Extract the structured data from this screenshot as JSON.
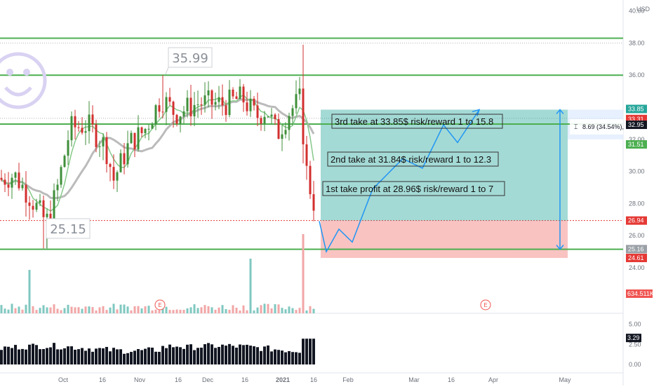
{
  "header": {
    "currency": "USD"
  },
  "chart_data": {
    "type": "candlestick",
    "currency": "USD",
    "price_axis": {
      "min": 22,
      "max": 40,
      "ticks": [
        24,
        26,
        28,
        30,
        32,
        34,
        36,
        38,
        40
      ],
      "tick_labels": [
        "24.00",
        "26.00",
        "28.00",
        "30.00",
        "32.00",
        "",
        "36.00",
        "38.00",
        "40.00"
      ]
    },
    "time_axis": {
      "labels": [
        "Oct",
        "16",
        "Nov",
        "16",
        "Dec",
        "16",
        "2021",
        "16",
        "Feb",
        "Mar",
        "16",
        "Apr",
        "May"
      ],
      "bold": [
        "2021"
      ]
    },
    "horizontal_levels": [
      38.3,
      36.0,
      32.95,
      25.15
    ],
    "price_tags": [
      {
        "value": 33.85,
        "label": "33.85",
        "color": "#26a69a"
      },
      {
        "value": 33.31,
        "label": "33.31",
        "color": "#e53935"
      },
      {
        "value": 32.95,
        "label": "32.95",
        "color": "#131722"
      },
      {
        "value": 31.51,
        "label": "31.51",
        "color": "#4caf50"
      },
      {
        "value": 26.94,
        "label": "26.94",
        "color": "#e53935"
      },
      {
        "value": 25.16,
        "label": "25.16",
        "color": "#9aa0a6"
      },
      {
        "value": 24.61,
        "label": "24.61",
        "color": "#e53935"
      }
    ],
    "callouts": [
      {
        "label": "35.99",
        "value": 35.99
      },
      {
        "label": "25.15",
        "value": 25.15
      }
    ],
    "position": {
      "entry": 26.94,
      "target": 33.85,
      "stop": 24.61
    },
    "measure": {
      "label": "8.69 (34.54%), 86"
    },
    "projection_path": [
      26.9,
      25.0,
      26.4,
      25.6,
      28.9,
      30.8,
      30.2,
      32.9,
      31.8,
      33.85
    ],
    "annotations": [
      {
        "text": "3rd take at 33.85$ risk/reward 1 to 15.8"
      },
      {
        "text": "2nd take at 31.84$ risk/reward 1 to 12.3"
      },
      {
        "text": "1st take profit at 28.96$ risk/reward 1 to 7"
      }
    ],
    "volume": {
      "label": "634.511K"
    },
    "earnings_markers": [
      "E",
      "E"
    ],
    "oscillator": {
      "ticks": [
        "5.00",
        "2.50",
        "0.00"
      ],
      "value_label": "3.29",
      "min": 0,
      "max": 5
    }
  }
}
